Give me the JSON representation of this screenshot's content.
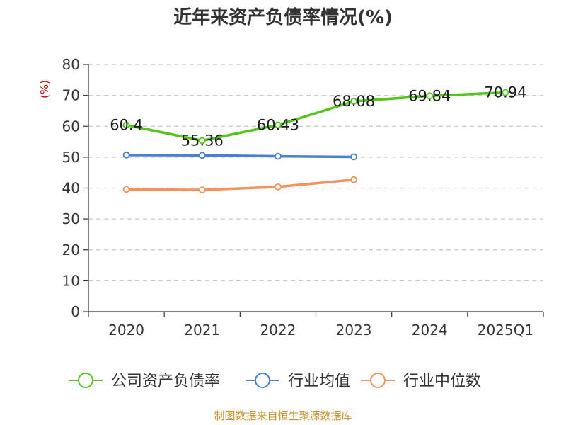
{
  "chart_data": {
    "type": "line",
    "title": "近年来资产负债率情况(%)",
    "ylabel": "(%)",
    "xlabel": "",
    "categories": [
      "2020",
      "2021",
      "2022",
      "2023",
      "2024",
      "2025Q1"
    ],
    "ylim": [
      0,
      80
    ],
    "yticks": [
      0,
      10,
      20,
      30,
      40,
      50,
      60,
      70,
      80
    ],
    "grid": true,
    "legend_position": "bottom",
    "series": [
      {
        "name": "公司资产负债率",
        "color": "#52c41a",
        "values": [
          60.4,
          55.36,
          60.43,
          68.08,
          69.84,
          70.94
        ],
        "labels": [
          "60.4",
          "55.36",
          "60.43",
          "68.08",
          "69.84",
          "70.94"
        ]
      },
      {
        "name": "行业均值",
        "color": "#4a7fd6",
        "values": [
          50.7,
          50.6,
          50.3,
          50.1,
          null,
          null
        ]
      },
      {
        "name": "行业中位数",
        "color": "#f4915c",
        "values": [
          39.6,
          39.4,
          40.4,
          42.7,
          null,
          null
        ]
      }
    ]
  },
  "source": "制图数据来自恒生聚源数据库"
}
